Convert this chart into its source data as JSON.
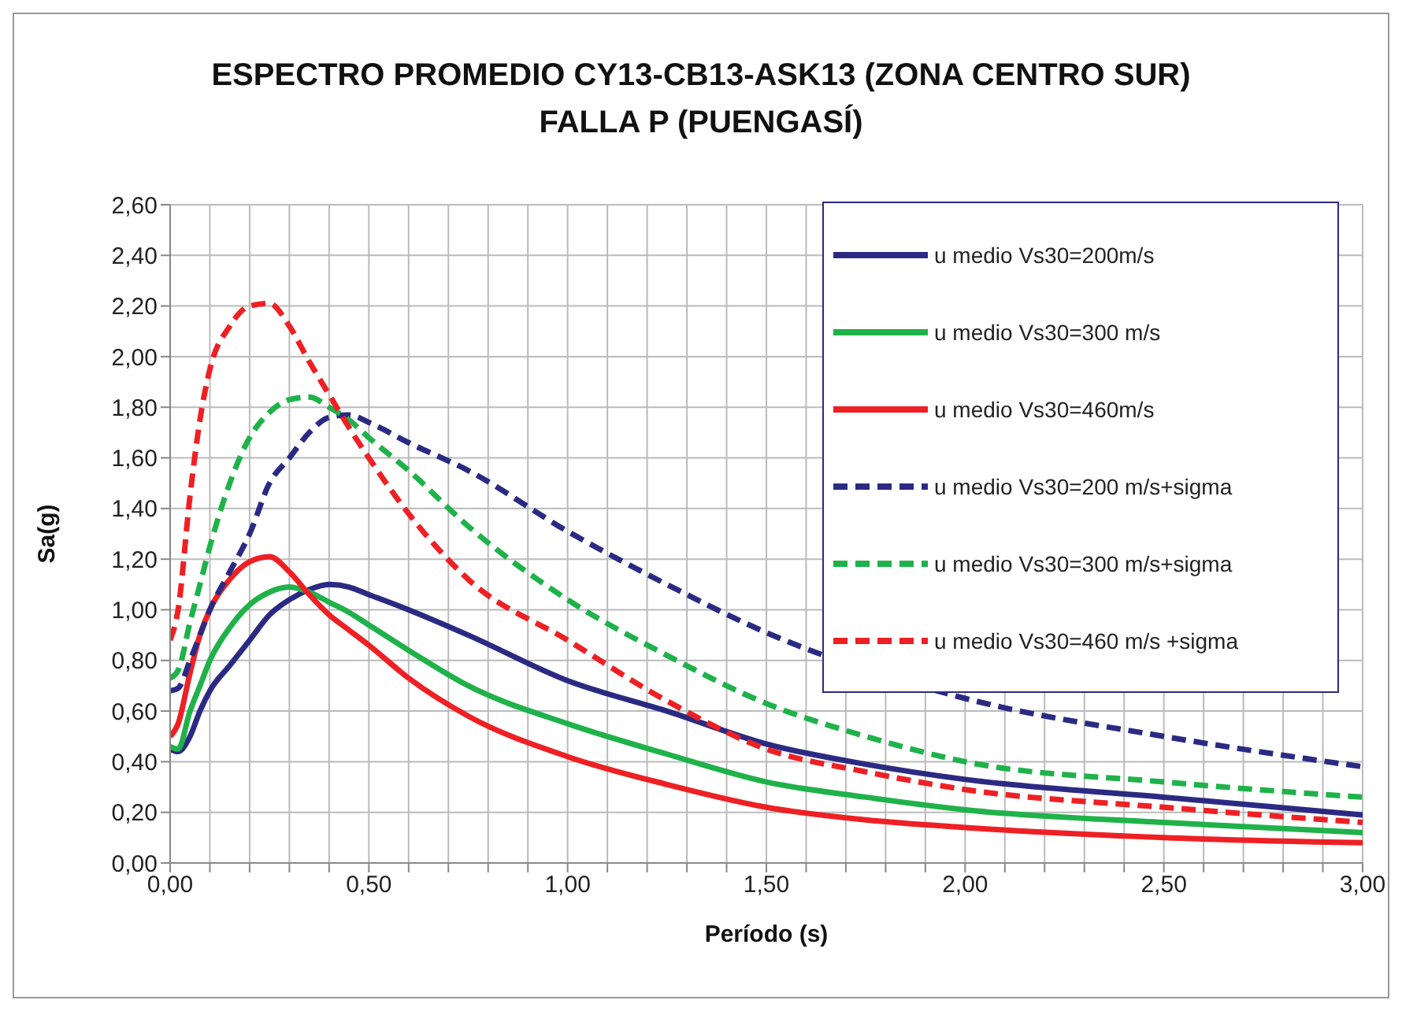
{
  "chart_data": {
    "type": "line",
    "title": "ESPECTRO PROMEDIO CY13-CB13-ASK13 (ZONA CENTRO SUR)",
    "subtitle": "FALLA P (PUENGASÍ)",
    "xlabel": "Período (s)",
    "ylabel": "Sa(g)",
    "x": [
      0,
      0.02,
      0.05,
      0.075,
      0.1,
      0.15,
      0.2,
      0.25,
      0.3,
      0.35,
      0.4,
      0.45,
      0.5,
      0.6,
      0.75,
      1.0,
      1.25,
      1.5,
      1.75,
      2.0,
      2.5,
      3.0
    ],
    "series": [
      {
        "name": "u medio Vs30=200m/s",
        "color": "#2b2a83",
        "line_style": "solid",
        "values": [
          0.45,
          0.44,
          0.5,
          0.6,
          0.68,
          0.78,
          0.88,
          0.98,
          1.04,
          1.08,
          1.1,
          1.09,
          1.06,
          1.0,
          0.9,
          0.72,
          0.6,
          0.47,
          0.39,
          0.33,
          0.26,
          0.19
        ]
      },
      {
        "name": "u medio Vs30=300 m/s",
        "color": "#1fb24a",
        "line_style": "solid",
        "values": [
          0.46,
          0.45,
          0.6,
          0.7,
          0.8,
          0.93,
          1.02,
          1.07,
          1.09,
          1.07,
          1.03,
          0.99,
          0.94,
          0.84,
          0.7,
          0.55,
          0.43,
          0.32,
          0.26,
          0.21,
          0.16,
          0.12
        ]
      },
      {
        "name": "u medio Vs30=460m/s",
        "color": "#ee2024",
        "line_style": "solid",
        "values": [
          0.5,
          0.55,
          0.75,
          0.9,
          1.0,
          1.12,
          1.19,
          1.21,
          1.15,
          1.06,
          0.98,
          0.92,
          0.86,
          0.73,
          0.58,
          0.42,
          0.31,
          0.22,
          0.17,
          0.14,
          0.1,
          0.08
        ]
      },
      {
        "name": "u medio Vs30=200 m/s+sigma",
        "color": "#2b2a83",
        "line_style": "dashed",
        "values": [
          0.68,
          0.69,
          0.8,
          0.9,
          1.0,
          1.15,
          1.3,
          1.5,
          1.6,
          1.7,
          1.76,
          1.77,
          1.74,
          1.66,
          1.55,
          1.31,
          1.1,
          0.91,
          null,
          0.65,
          0.5,
          0.38
        ]
      },
      {
        "name": "u medio Vs30=300 m/s+sigma",
        "color": "#1fb24a",
        "line_style": "dashed",
        "values": [
          0.73,
          0.76,
          0.95,
          1.1,
          1.25,
          1.5,
          1.68,
          1.78,
          1.83,
          1.84,
          1.8,
          1.75,
          1.68,
          1.55,
          1.33,
          1.04,
          0.82,
          0.63,
          0.5,
          0.4,
          0.32,
          0.26
        ]
      },
      {
        "name": "u medio Vs30=460 m/s +sigma",
        "color": "#ee2024",
        "line_style": "dashed",
        "values": [
          0.88,
          1.0,
          1.45,
          1.75,
          1.95,
          2.12,
          2.2,
          2.21,
          2.12,
          1.98,
          1.85,
          1.72,
          1.6,
          1.38,
          1.12,
          0.88,
          0.64,
          0.45,
          0.36,
          0.29,
          0.22,
          0.16
        ]
      }
    ],
    "xlim": [
      0,
      3
    ],
    "xticks": [
      {
        "value": 0,
        "label": "0,00"
      },
      {
        "value": 0.1,
        "label": null
      },
      {
        "value": 0.2,
        "label": null
      },
      {
        "value": 0.3,
        "label": null
      },
      {
        "value": 0.4,
        "label": null
      },
      {
        "value": 0.5,
        "label": "0,50"
      },
      {
        "value": 0.6,
        "label": null
      },
      {
        "value": 0.7,
        "label": null
      },
      {
        "value": 0.8,
        "label": null
      },
      {
        "value": 0.9,
        "label": null
      },
      {
        "value": 1,
        "label": "1,00"
      },
      {
        "value": 1.1,
        "label": null
      },
      {
        "value": 1.2,
        "label": null
      },
      {
        "value": 1.3,
        "label": null
      },
      {
        "value": 1.4,
        "label": null
      },
      {
        "value": 1.5,
        "label": "1,50"
      },
      {
        "value": 1.6,
        "label": null
      },
      {
        "value": 1.7,
        "label": null
      },
      {
        "value": 1.8,
        "label": null
      },
      {
        "value": 1.9,
        "label": null
      },
      {
        "value": 2,
        "label": "2,00"
      },
      {
        "value": 2.1,
        "label": null
      },
      {
        "value": 2.2,
        "label": null
      },
      {
        "value": 2.3,
        "label": null
      },
      {
        "value": 2.4,
        "label": null
      },
      {
        "value": 2.5,
        "label": "2,50"
      },
      {
        "value": 2.6,
        "label": null
      },
      {
        "value": 2.7,
        "label": null
      },
      {
        "value": 2.8,
        "label": null
      },
      {
        "value": 2.9,
        "label": null
      },
      {
        "value": 3,
        "label": "3,00"
      }
    ],
    "ylim": [
      0,
      2.6
    ],
    "yticks": [
      {
        "value": 0,
        "label": "0,00"
      },
      {
        "value": 0.2,
        "label": "0,20"
      },
      {
        "value": 0.4,
        "label": "0,40"
      },
      {
        "value": 0.6,
        "label": "0,60"
      },
      {
        "value": 0.8,
        "label": "0,80"
      },
      {
        "value": 1,
        "label": "1,00"
      },
      {
        "value": 1.2,
        "label": "1,20"
      },
      {
        "value": 1.4,
        "label": "1,40"
      },
      {
        "value": 1.6,
        "label": "1,60"
      },
      {
        "value": 1.8,
        "label": "1,80"
      },
      {
        "value": 2,
        "label": "2,00"
      },
      {
        "value": 2.2,
        "label": "2,20"
      },
      {
        "value": 2.4,
        "label": "2,40"
      },
      {
        "value": 2.6,
        "label": "2,60"
      }
    ],
    "grid": true,
    "legend": "top right",
    "marker": "none"
  }
}
